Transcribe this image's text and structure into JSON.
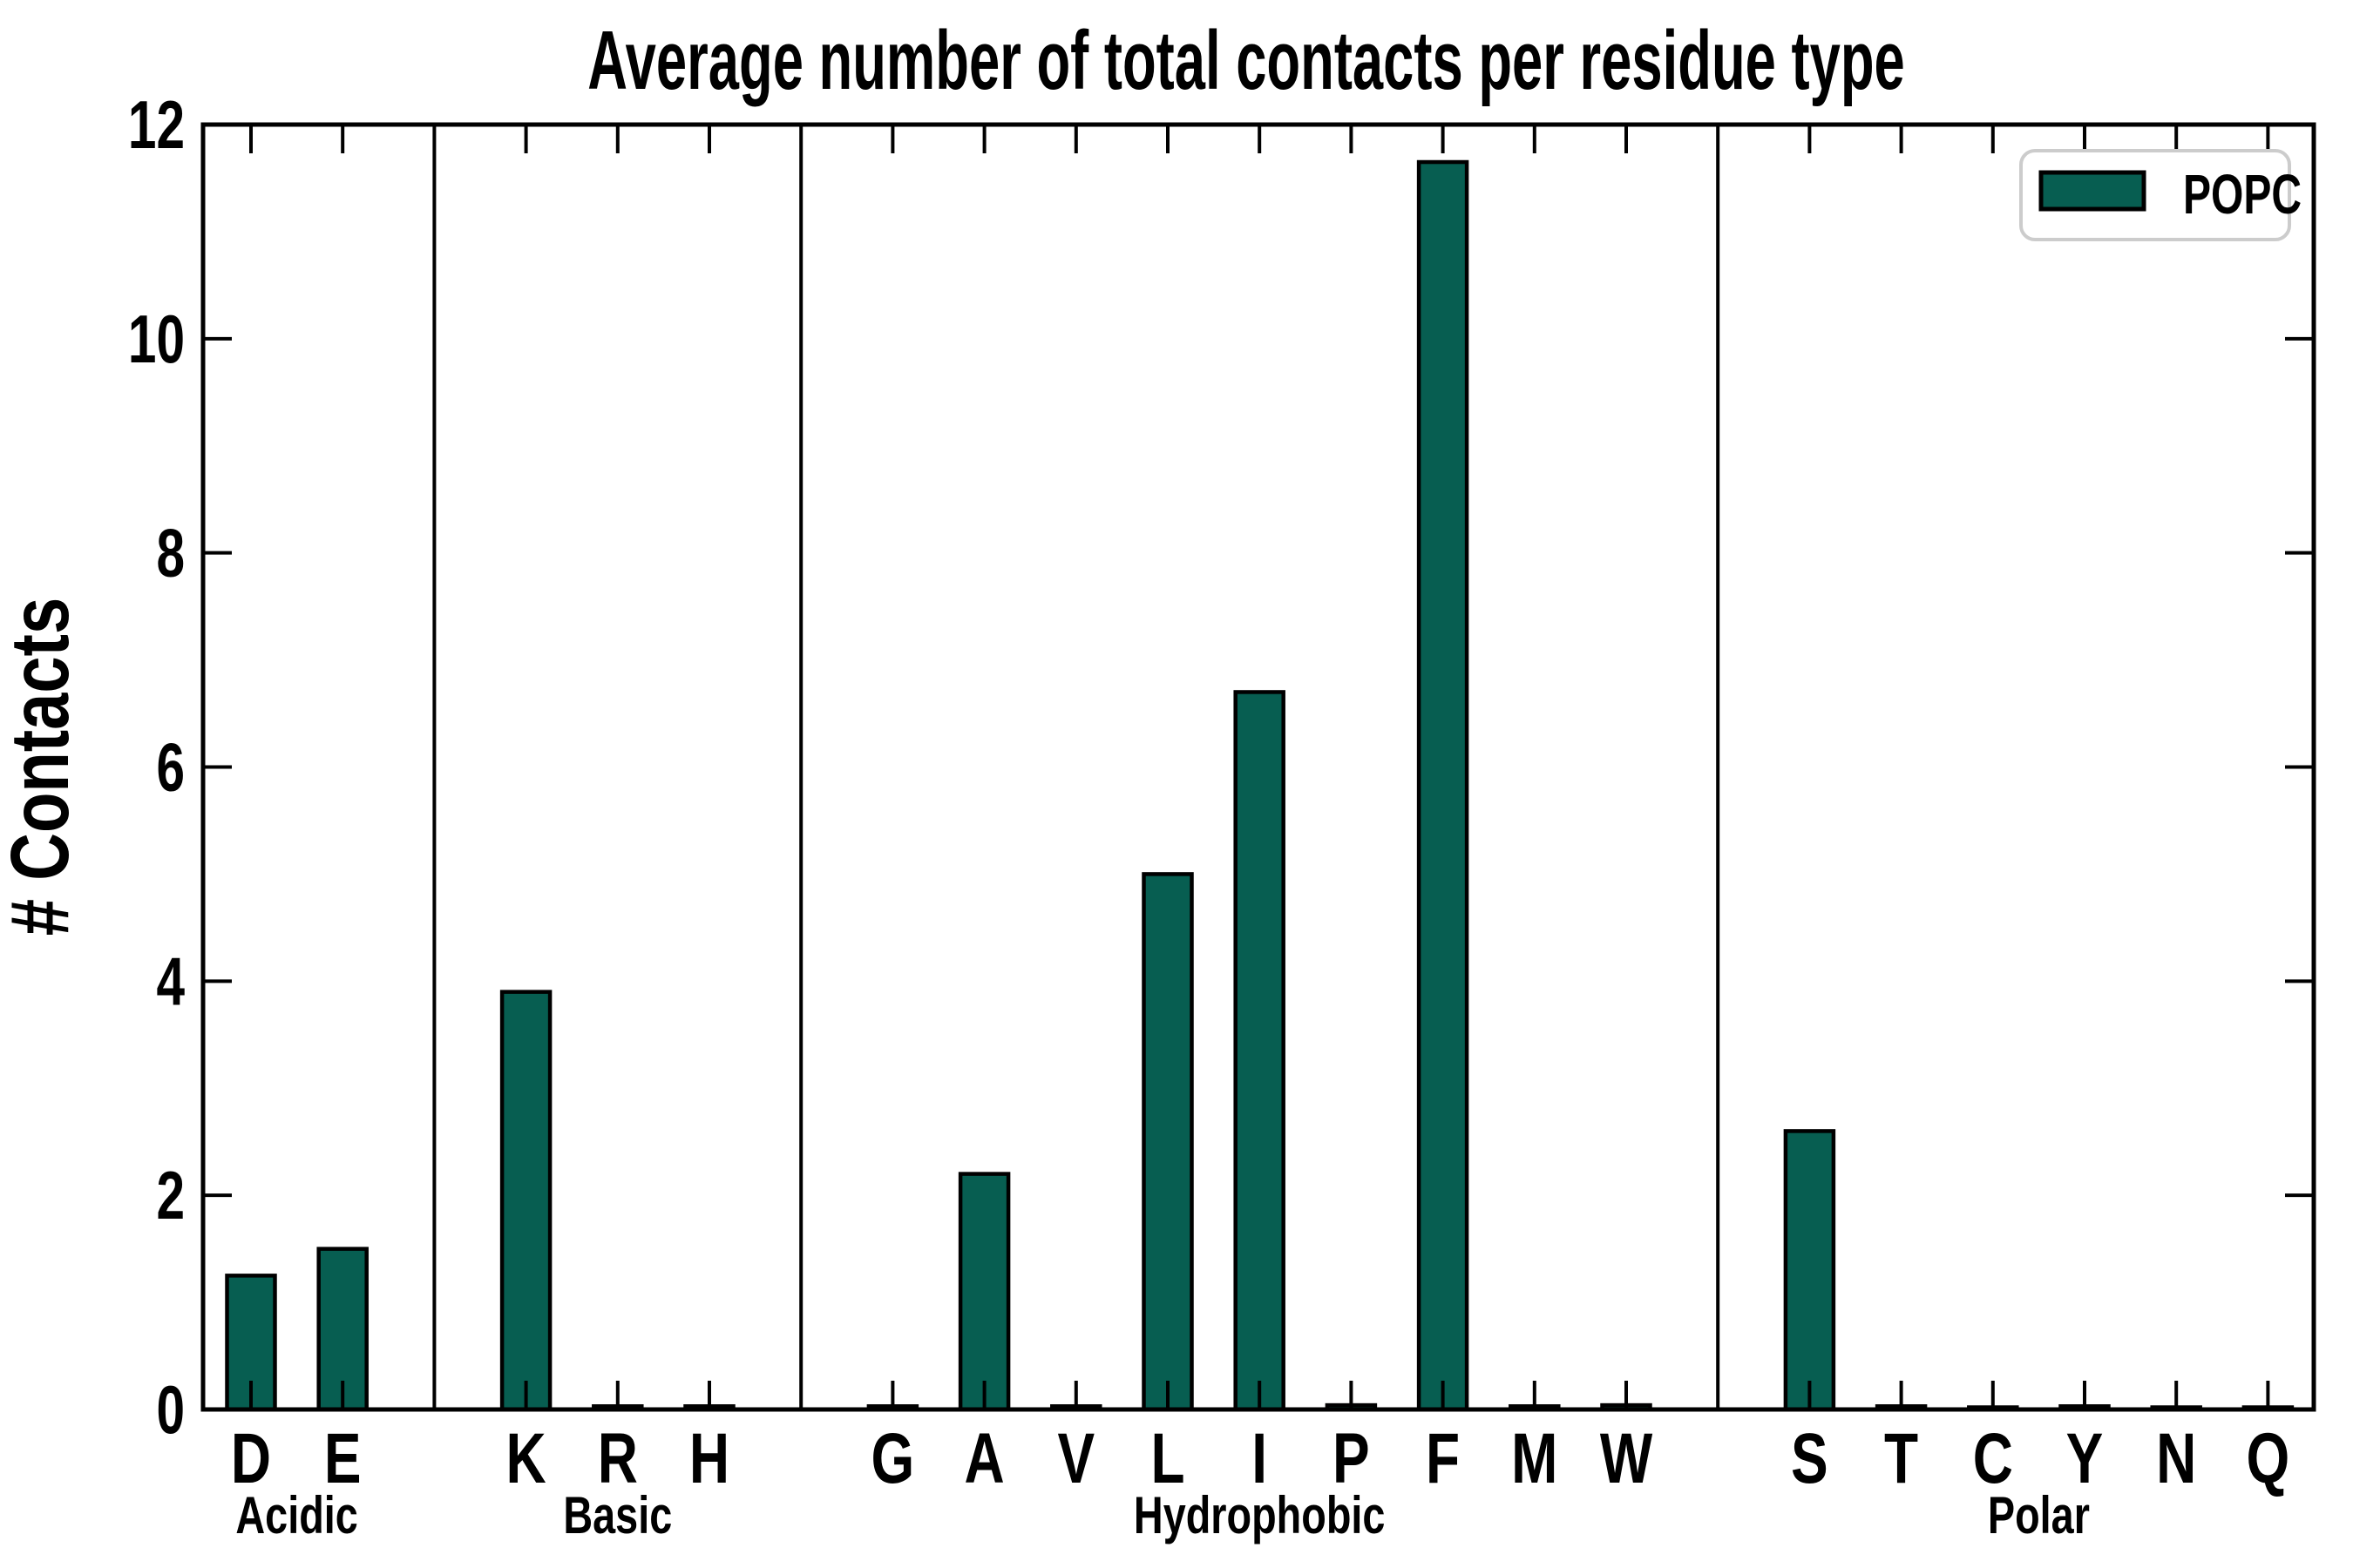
{
  "figure": {
    "background": "#ffffff"
  },
  "title": "Average number of total contacts per residue type",
  "y_axis": {
    "label": "# Contacts",
    "tick_labels": [
      "0",
      "2",
      "4",
      "6",
      "8",
      "10",
      "12"
    ]
  },
  "legend": {
    "label": "POPC"
  },
  "colors": {
    "bar_fill": "#075E51",
    "bar_edge": "#000000",
    "axis": "#000000",
    "text": "#000000",
    "legend_border": "#CCCCCC",
    "legend_background": "#FFFFFF"
  },
  "chart_data": {
    "type": "bar",
    "title": "Average number of total contacts per residue type",
    "xlabel": "",
    "ylabel": "# Contacts",
    "ylim": [
      0,
      12
    ],
    "yticks": [
      0,
      2,
      4,
      6,
      8,
      10,
      12
    ],
    "grid": false,
    "legend_position": "upper right",
    "series_name": "POPC",
    "series_color": "#075E51",
    "groups": [
      {
        "label": "Acidic",
        "categories": [
          "D",
          "E"
        ],
        "values": [
          1.25,
          1.5
        ]
      },
      {
        "label": "Basic",
        "categories": [
          "K",
          "R",
          "H"
        ],
        "values": [
          3.9,
          0.03,
          0.03
        ]
      },
      {
        "label": "Hydrophobic",
        "categories": [
          "G",
          "A",
          "V",
          "L",
          "I",
          "P",
          "F",
          "M",
          "W"
        ],
        "values": [
          0.03,
          2.2,
          0.03,
          5.0,
          6.7,
          0.04,
          11.65,
          0.03,
          0.04
        ]
      },
      {
        "label": "Polar",
        "categories": [
          "S",
          "T",
          "C",
          "Y",
          "N",
          "Q"
        ],
        "values": [
          2.6,
          0.03,
          0.02,
          0.03,
          0.02,
          0.02
        ]
      }
    ]
  }
}
